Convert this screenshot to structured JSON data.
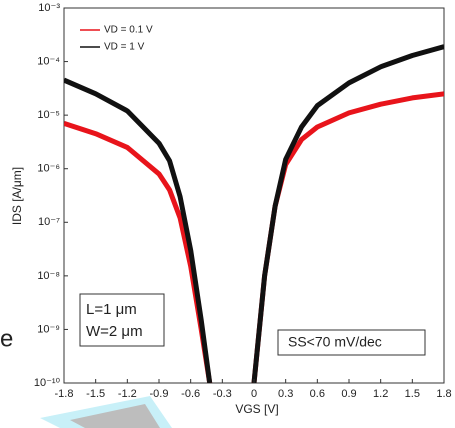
{
  "chart_data": {
    "type": "line",
    "x_label": "VGS [V]",
    "y_label": "IDS [A/μm]",
    "annotations": [
      "L=1 μm",
      "W=2 μm",
      "SS<70 mV/dec",
      "e"
    ],
    "x": [
      -1.8,
      -1.5,
      -1.2,
      -0.9,
      -0.8,
      -0.7,
      -0.6,
      -0.5,
      -0.42,
      -0.2,
      0,
      0.1,
      0.2,
      0.3,
      0.45,
      0.6,
      0.9,
      1.2,
      1.5,
      1.8
    ],
    "series": [
      {
        "name": "VD = 0.1 V",
        "color": "#e8141b",
        "values": [
          7e-06,
          4.5e-06,
          2.5e-06,
          8e-07,
          4e-07,
          1.2e-07,
          1.5e-08,
          1e-09,
          1e-10,
          null,
          1e-10,
          1e-08,
          2e-07,
          1.2e-06,
          3.5e-06,
          6e-06,
          1.1e-05,
          1.6e-05,
          2.1e-05,
          2.5e-05
        ]
      },
      {
        "name": "VD = 1 V",
        "color": "#111111",
        "values": [
          4.5e-05,
          2.5e-05,
          1.2e-05,
          3e-06,
          1.4e-06,
          3e-07,
          3e-08,
          1.5e-09,
          1e-10,
          null,
          1e-10,
          1e-08,
          2e-07,
          1.5e-06,
          6e-06,
          1.5e-05,
          4e-05,
          8e-05,
          0.00013,
          0.00019
        ]
      }
    ],
    "xlim": [
      -1.8,
      1.8
    ],
    "xticks": [
      -1.8,
      -1.5,
      -1.2,
      -0.9,
      -0.6,
      -0.3,
      0,
      0.3,
      0.6,
      0.9,
      1.2,
      1.5,
      1.8
    ],
    "ylim": [
      1e-10,
      0.001
    ],
    "y_scale": "log",
    "yticks": [
      {
        "value": 1e-10,
        "label": "10⁻¹⁰"
      },
      {
        "value": 1e-09,
        "label": "10⁻⁹"
      },
      {
        "value": 1e-08,
        "label": "10⁻⁸"
      },
      {
        "value": 1e-07,
        "label": "10⁻⁷"
      },
      {
        "value": 1e-06,
        "label": "10⁻⁶"
      },
      {
        "value": 1e-05,
        "label": "10⁻⁵"
      },
      {
        "value": 0.0001,
        "label": "10⁻⁴"
      },
      {
        "value": 0.001,
        "label": "10⁻³"
      }
    ],
    "grid": false,
    "legend": "upper left"
  }
}
